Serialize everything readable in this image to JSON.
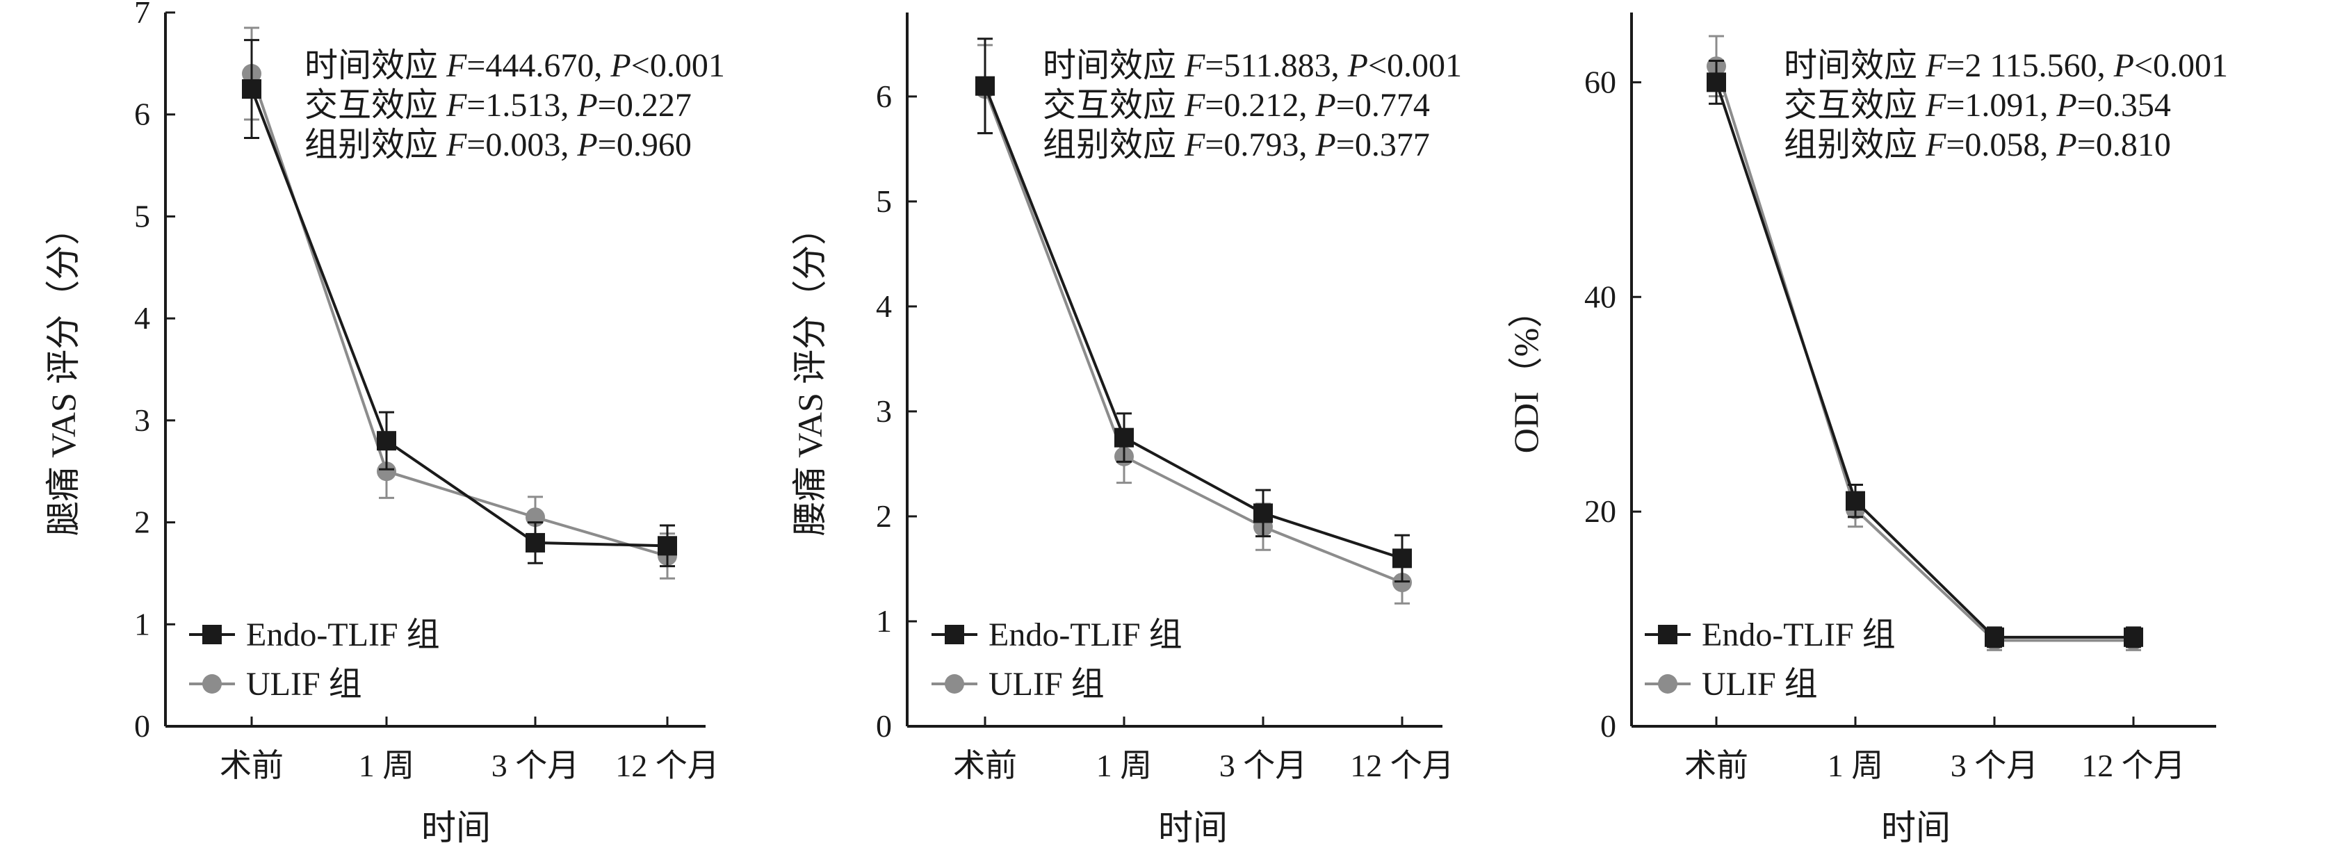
{
  "colors": {
    "endo": "#1a1a1a",
    "ulif": "#8c8c8c",
    "axis": "#1a1a1a"
  },
  "legend": {
    "endo": "Endo-TLIF 组",
    "ulif": "ULIF 组"
  },
  "chart_data": [
    {
      "type": "line",
      "categories": [
        "术前",
        "1 周",
        "3 个月",
        "12 个月"
      ],
      "xlabel": "时间",
      "ylabel": "腿痛 VAS 评分（分）",
      "ylim": [
        0,
        7
      ],
      "yticks": [
        0,
        1,
        2,
        3,
        4,
        5,
        6,
        7
      ],
      "annotations": [
        {
          "prefix": "时间效应 ",
          "f_sym": "F",
          "f_val": "=444.670, ",
          "p_sym": "P",
          "p_val": "<0.001"
        },
        {
          "prefix": "交互效应 ",
          "f_sym": "F",
          "f_val": "=1.513, ",
          "p_sym": "P",
          "p_val": "=0.227"
        },
        {
          "prefix": "组别效应 ",
          "f_sym": "F",
          "f_val": "=0.003, ",
          "p_sym": "P",
          "p_val": "=0.960"
        }
      ],
      "series": [
        {
          "key": "endo",
          "name": "Endo-TLIF 组",
          "values": [
            6.25,
            2.8,
            1.8,
            1.77
          ],
          "err": [
            0.48,
            0.28,
            0.2,
            0.2
          ]
        },
        {
          "key": "ulif",
          "name": "ULIF 组",
          "values": [
            6.4,
            2.5,
            2.05,
            1.67
          ],
          "err": [
            0.45,
            0.26,
            0.2,
            0.22
          ]
        }
      ]
    },
    {
      "type": "line",
      "categories": [
        "术前",
        "1 周",
        "3 个月",
        "12 个月"
      ],
      "xlabel": "时间",
      "ylabel": "腰痛 VAS 评分（分）",
      "ylim": [
        0,
        6.8
      ],
      "yticks": [
        0,
        1,
        2,
        3,
        4,
        5,
        6
      ],
      "annotations": [
        {
          "prefix": "时间效应 ",
          "f_sym": "F",
          "f_val": "=511.883, ",
          "p_sym": "P",
          "p_val": "<0.001"
        },
        {
          "prefix": "交互效应 ",
          "f_sym": "F",
          "f_val": "=0.212, ",
          "p_sym": "P",
          "p_val": "=0.774"
        },
        {
          "prefix": "组别效应 ",
          "f_sym": "F",
          "f_val": "=0.793, ",
          "p_sym": "P",
          "p_val": "=0.377"
        }
      ],
      "series": [
        {
          "key": "endo",
          "name": "Endo-TLIF 组",
          "values": [
            6.1,
            2.75,
            2.03,
            1.6
          ],
          "err": [
            0.45,
            0.23,
            0.22,
            0.22
          ]
        },
        {
          "key": "ulif",
          "name": "ULIF 组",
          "values": [
            6.07,
            2.57,
            1.9,
            1.37
          ],
          "err": [
            0.42,
            0.25,
            0.22,
            0.2
          ]
        }
      ]
    },
    {
      "type": "line",
      "categories": [
        "术前",
        "1 周",
        "3 个月",
        "12 个月"
      ],
      "xlabel": "时间",
      "ylabel": "ODI（%）",
      "ylim": [
        0,
        66.5
      ],
      "yticks": [
        0,
        20,
        40,
        60
      ],
      "annotations": [
        {
          "prefix": "时间效应 ",
          "f_sym": "F",
          "f_val": "=2 115.560, ",
          "p_sym": "P",
          "p_val": "<0.001"
        },
        {
          "prefix": "交互效应 ",
          "f_sym": "F",
          "f_val": "=1.091, ",
          "p_sym": "P",
          "p_val": "=0.354"
        },
        {
          "prefix": "组别效应 ",
          "f_sym": "F",
          "f_val": "=0.058, ",
          "p_sym": "P",
          "p_val": "=0.810"
        }
      ],
      "series": [
        {
          "key": "endo",
          "name": "Endo-TLIF 组",
          "values": [
            60.0,
            21.0,
            8.3,
            8.3
          ],
          "err": [
            2.0,
            1.5,
            0.9,
            0.9
          ]
        },
        {
          "key": "ulif",
          "name": "ULIF 组",
          "values": [
            61.5,
            20.2,
            8.0,
            8.0
          ],
          "err": [
            2.8,
            1.6,
            0.9,
            0.9
          ]
        }
      ]
    }
  ]
}
